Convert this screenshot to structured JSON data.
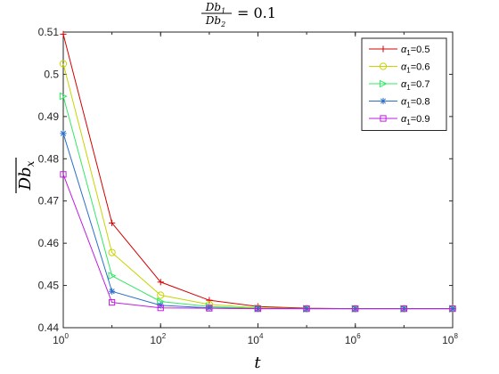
{
  "chart_data": {
    "type": "line",
    "title": {
      "fraction_numerator": "Db",
      "numerator_sub": "1",
      "fraction_denominator": "Db",
      "denominator_sub": "2",
      "equals": "= 0.1"
    },
    "xlabel": "t",
    "ylabel": {
      "base": "Db",
      "sub": "x"
    },
    "x_scale": "log",
    "x": [
      1,
      10,
      100,
      1000,
      10000,
      100000,
      1000000,
      10000000,
      100000000
    ],
    "xlim": [
      1,
      100000000
    ],
    "ylim": [
      0.44,
      0.51
    ],
    "x_ticks": [
      {
        "base": "10",
        "exp": "0",
        "value": 1
      },
      {
        "base": "10",
        "exp": "2",
        "value": 100
      },
      {
        "base": "10",
        "exp": "4",
        "value": 10000
      },
      {
        "base": "10",
        "exp": "6",
        "value": 1000000
      },
      {
        "base": "10",
        "exp": "8",
        "value": 100000000
      }
    ],
    "y_ticks": [
      {
        "label": "0.44",
        "value": 0.44
      },
      {
        "label": "0.45",
        "value": 0.45
      },
      {
        "label": "0.46",
        "value": 0.46
      },
      {
        "label": "0.47",
        "value": 0.47
      },
      {
        "label": "0.48",
        "value": 0.48
      },
      {
        "label": "0.49",
        "value": 0.49
      },
      {
        "label": "0.5",
        "value": 0.5
      },
      {
        "label": "0.51",
        "value": 0.51
      }
    ],
    "grid": false,
    "legend_position": "top-right",
    "series": [
      {
        "greek": "α",
        "sub": "1",
        "eq": "=0.5",
        "marker": "plus",
        "color": "#d40000",
        "values": [
          0.5095,
          0.4648,
          0.4508,
          0.4465,
          0.445,
          0.4446,
          0.4445,
          0.4445,
          0.4445
        ]
      },
      {
        "greek": "α",
        "sub": "1",
        "eq": "=0.6",
        "marker": "circle",
        "color": "#c8d400",
        "values": [
          0.5025,
          0.4578,
          0.4477,
          0.4455,
          0.4447,
          0.4445,
          0.4445,
          0.4445,
          0.4445
        ]
      },
      {
        "greek": "α",
        "sub": "1",
        "eq": "=0.7",
        "marker": "triangle-right",
        "color": "#33e866",
        "values": [
          0.4948,
          0.4523,
          0.4462,
          0.445,
          0.4446,
          0.4445,
          0.4445,
          0.4445,
          0.4445
        ]
      },
      {
        "greek": "α",
        "sub": "1",
        "eq": "=0.8",
        "marker": "asterisk",
        "color": "#2a6fc9",
        "values": [
          0.486,
          0.4486,
          0.4453,
          0.4447,
          0.4445,
          0.4445,
          0.4445,
          0.4445,
          0.4445
        ]
      },
      {
        "greek": "α",
        "sub": "1",
        "eq": "=0.9",
        "marker": "square",
        "color": "#c21be0",
        "values": [
          0.4763,
          0.446,
          0.4447,
          0.4446,
          0.4445,
          0.4445,
          0.4445,
          0.4445,
          0.4445
        ]
      }
    ]
  }
}
